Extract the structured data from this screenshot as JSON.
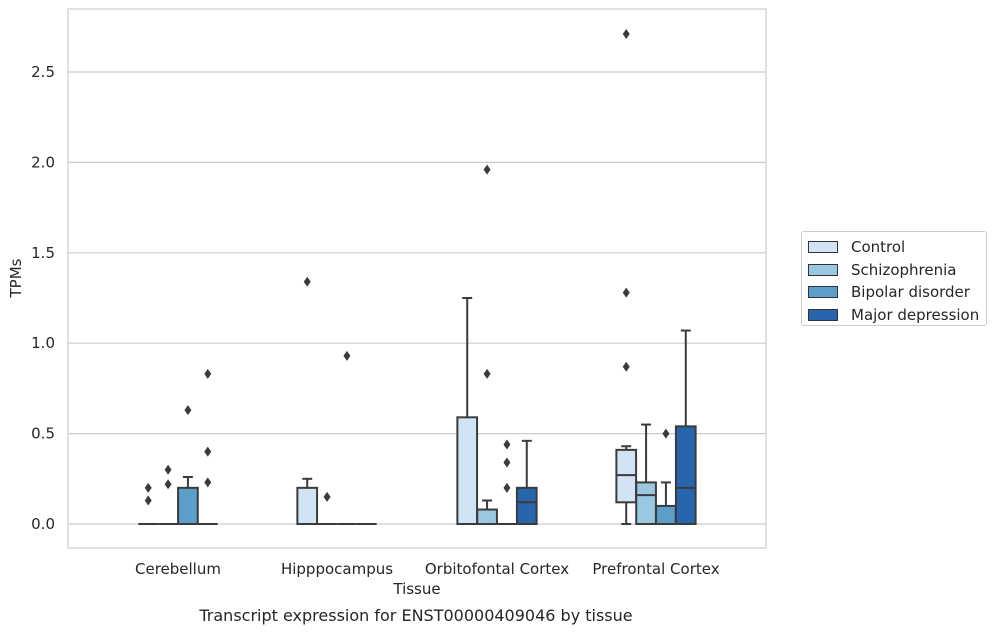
{
  "chart_data": {
    "type": "box",
    "title": "",
    "xlabel": "Tissue",
    "ylabel": "TPMs",
    "ylim": [
      -0.13,
      2.85
    ],
    "yticks": [
      "0.0",
      "0.5",
      "1.0",
      "1.5",
      "2.0",
      "2.5"
    ],
    "categories": [
      "Cerebellum",
      "Hipppocampus",
      "Orbitofontal Cortex",
      "Prefrontal Cortex"
    ],
    "grid": "horizontal",
    "legend_position": "right",
    "colors": [
      "#d2e3f3",
      "#9ac8e0",
      "#5a9ec9",
      "#2766ac"
    ],
    "series": [
      {
        "name": "Control",
        "boxes": [
          {
            "q1": 0,
            "median": 0,
            "q3": 0,
            "whislo": 0,
            "whishi": 0,
            "fliers": [
              0.13,
              0.2
            ]
          },
          {
            "q1": 0,
            "median": 0,
            "q3": 0.2,
            "whislo": 0,
            "whishi": 0.25,
            "fliers": [
              1.34
            ]
          },
          {
            "q1": 0,
            "median": 0,
            "q3": 0.59,
            "whislo": 0,
            "whishi": 1.25,
            "fliers": []
          },
          {
            "q1": 0.12,
            "median": 0.27,
            "q3": 0.41,
            "whislo": 0,
            "whishi": 0.43,
            "fliers": [
              0.87,
              1.28,
              2.71
            ]
          }
        ]
      },
      {
        "name": "Schizophrenia",
        "boxes": [
          {
            "q1": 0,
            "median": 0,
            "q3": 0,
            "whislo": 0,
            "whishi": 0,
            "fliers": [
              0.22,
              0.3
            ]
          },
          {
            "q1": 0,
            "median": 0,
            "q3": 0,
            "whislo": 0,
            "whishi": 0,
            "fliers": [
              0.15
            ]
          },
          {
            "q1": 0,
            "median": 0,
            "q3": 0.08,
            "whislo": 0,
            "whishi": 0.13,
            "fliers": [
              0.83,
              1.96
            ]
          },
          {
            "q1": 0,
            "median": 0.16,
            "q3": 0.23,
            "whislo": 0,
            "whishi": 0.55,
            "fliers": []
          }
        ]
      },
      {
        "name": "Bipolar disorder",
        "boxes": [
          {
            "q1": 0,
            "median": 0,
            "q3": 0.2,
            "whislo": 0,
            "whishi": 0.26,
            "fliers": [
              0.63
            ]
          },
          {
            "q1": 0,
            "median": 0,
            "q3": 0,
            "whislo": 0,
            "whishi": 0,
            "fliers": [
              0.93
            ]
          },
          {
            "q1": 0,
            "median": 0,
            "q3": 0,
            "whislo": 0,
            "whishi": 0,
            "fliers": [
              0.2,
              0.34,
              0.44
            ]
          },
          {
            "q1": 0,
            "median": 0,
            "q3": 0.1,
            "whislo": 0,
            "whishi": 0.23,
            "fliers": [
              0.5
            ]
          }
        ]
      },
      {
        "name": "Major depression",
        "boxes": [
          {
            "q1": 0,
            "median": 0,
            "q3": 0,
            "whislo": 0,
            "whishi": 0,
            "fliers": [
              0.23,
              0.4,
              0.83
            ]
          },
          {
            "q1": 0,
            "median": 0,
            "q3": 0,
            "whislo": 0,
            "whishi": 0,
            "fliers": []
          },
          {
            "q1": 0,
            "median": 0.12,
            "q3": 0.2,
            "whislo": 0,
            "whishi": 0.46,
            "fliers": []
          },
          {
            "q1": 0,
            "median": 0.2,
            "q3": 0.54,
            "whislo": 0,
            "whishi": 1.07,
            "fliers": []
          }
        ]
      }
    ]
  },
  "caption": "Transcript expression for ENST00000409046 by tissue"
}
